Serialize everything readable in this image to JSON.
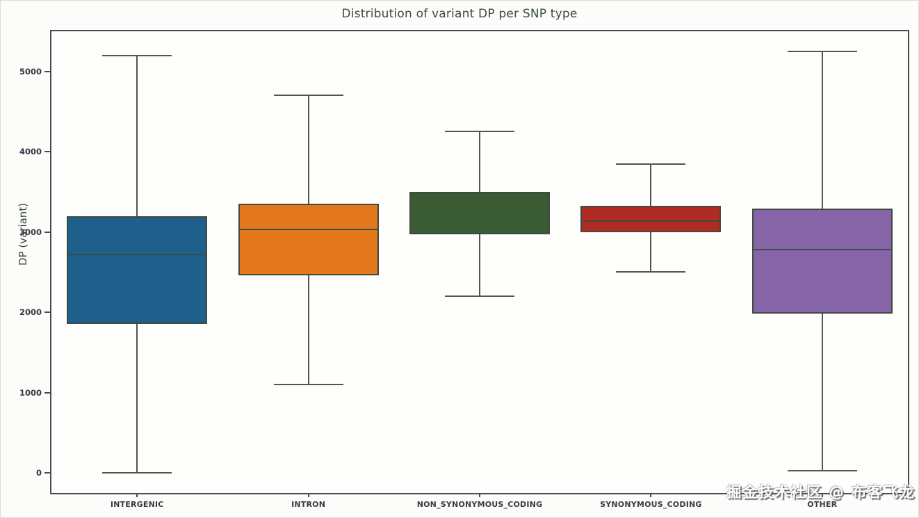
{
  "page": {
    "background": "#fbfbf9",
    "watermark": "掘金技术社区 @ 布客飞龙"
  },
  "chart_data": {
    "type": "box",
    "title": "Distribution of variant DP per SNP type",
    "xlabel": "",
    "ylabel": "DP (variant)",
    "ylim": [
      -250,
      5500
    ],
    "yticks": [
      0,
      1000,
      2000,
      3000,
      4000,
      5000
    ],
    "grid": false,
    "legend": null,
    "categories": [
      "INTERGENIC",
      "INTRON",
      "NON_SYNONYMOUS_CODING",
      "SYNONYMOUS_CODING",
      "OTHER"
    ],
    "series": [
      {
        "category": "INTERGENIC",
        "color": "#1f5f8c",
        "whisker_low": 0,
        "q1": 1850,
        "median": 2720,
        "q3": 3200,
        "whisker_high": 5200
      },
      {
        "category": "INTRON",
        "color": "#e2771c",
        "whisker_low": 1100,
        "q1": 2460,
        "median": 3030,
        "q3": 3350,
        "whisker_high": 4700
      },
      {
        "category": "NON_SYNONYMOUS_CODING",
        "color": "#3b5b34",
        "whisker_low": 2200,
        "q1": 2970,
        "median": null,
        "q3": 3500,
        "whisker_high": 4250
      },
      {
        "category": "SYNONYMOUS_CODING",
        "color": "#b02b22",
        "whisker_low": 2500,
        "q1": 3000,
        "median": 3140,
        "q3": 3330,
        "whisker_high": 3850
      },
      {
        "category": "OTHER",
        "color": "#8565a7",
        "whisker_low": 30,
        "q1": 1980,
        "median": 2780,
        "q3": 3290,
        "whisker_high": 5250
      }
    ],
    "style": {
      "box_edge_color": "#3f4b40",
      "whisker_color": "#4f564f",
      "spine_color": "#4b4b4b",
      "title_color": "#3c4b42"
    }
  }
}
